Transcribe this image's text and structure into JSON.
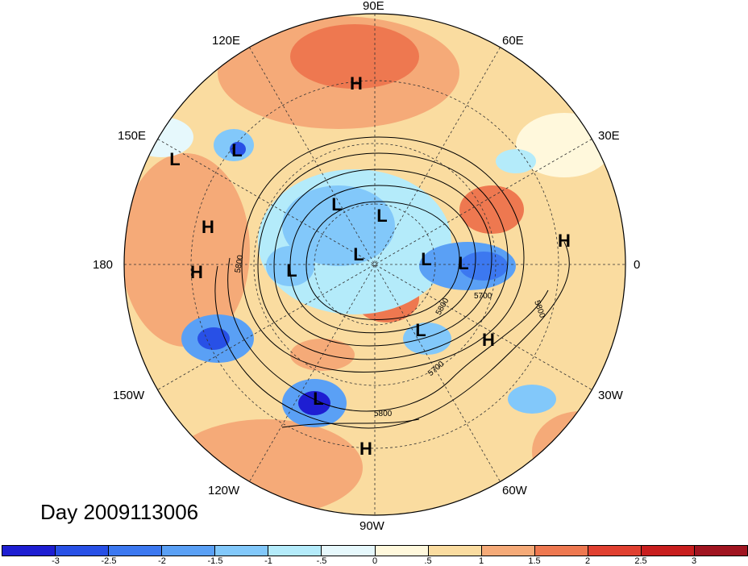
{
  "map": {
    "title": "Day 2009113006",
    "projection": "north-polar-stereographic",
    "longitude_labels": [
      "90E",
      "60E",
      "30E",
      "0",
      "30W",
      "60W",
      "90W",
      "120W",
      "150W",
      "180",
      "150E",
      "120E"
    ],
    "pressure_centers": [
      {
        "type": "H",
        "region": "central-asia"
      },
      {
        "type": "L",
        "region": "nw-pacific"
      },
      {
        "type": "L",
        "region": "nw-pacific-2"
      },
      {
        "type": "H",
        "region": "dateline-north"
      },
      {
        "type": "H",
        "region": "dateline-south"
      },
      {
        "type": "L",
        "region": "east-siberia"
      },
      {
        "type": "L",
        "region": "arctic-1"
      },
      {
        "type": "L",
        "region": "arctic-2"
      },
      {
        "type": "L",
        "region": "arctic-3"
      },
      {
        "type": "L",
        "region": "north-atlantic-1"
      },
      {
        "type": "L",
        "region": "north-atlantic-2"
      },
      {
        "type": "L",
        "region": "hudson-bay"
      },
      {
        "type": "H",
        "region": "europe"
      },
      {
        "type": "H",
        "region": "central-atlantic"
      },
      {
        "type": "L",
        "region": "ne-pacific"
      },
      {
        "type": "H",
        "region": "central-america"
      }
    ],
    "contour_labels": [
      "5800",
      "5800",
      "5700",
      "5800",
      "5700",
      "5800"
    ]
  },
  "colorbar": {
    "ticks": [
      "-3",
      "-2.5",
      "-2",
      "-1.5",
      "-1",
      "-.5",
      "0",
      ".5",
      "1",
      "1.5",
      "2",
      "2.5",
      "3"
    ],
    "colors": [
      "#1e1ed2",
      "#2850e6",
      "#3c78f0",
      "#5aa0f5",
      "#82c8fa",
      "#b4ebfa",
      "#e6f8fc",
      "#fff8dc",
      "#fadca0",
      "#f5aa78",
      "#ee7850",
      "#e04030",
      "#c81e1e",
      "#a01420"
    ]
  }
}
